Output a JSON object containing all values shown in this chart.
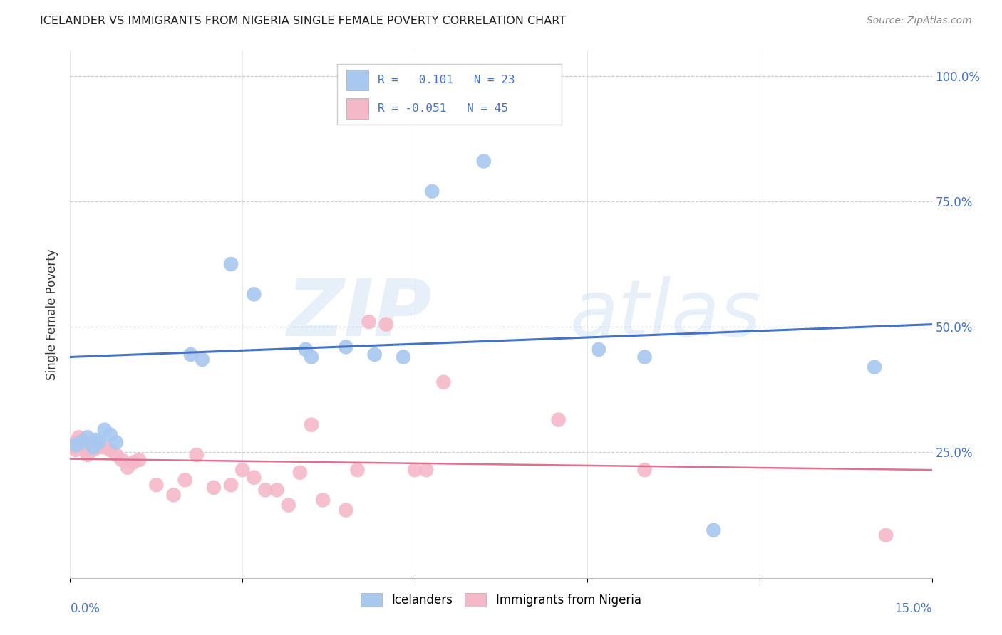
{
  "title": "ICELANDER VS IMMIGRANTS FROM NIGERIA SINGLE FEMALE POVERTY CORRELATION CHART",
  "source": "Source: ZipAtlas.com",
  "ylabel": "Single Female Poverty",
  "icelanders_color": "#a8c8f0",
  "nigeria_color": "#f5b8c8",
  "trendline_blue": "#4472c4",
  "trendline_pink": "#e07090",
  "background_color": "#ffffff",
  "watermark_zip": "ZIP",
  "watermark_atlas": "atlas",
  "xlim": [
    0.0,
    0.15
  ],
  "ylim": [
    0.0,
    1.05
  ],
  "ice_x": [
    0.001,
    0.002,
    0.003,
    0.004,
    0.0045,
    0.005,
    0.006,
    0.007,
    0.008,
    0.021,
    0.023,
    0.028,
    0.032,
    0.041,
    0.042,
    0.048,
    0.053,
    0.058,
    0.063,
    0.072,
    0.092,
    0.1,
    0.112,
    0.14
  ],
  "ice_y": [
    0.265,
    0.27,
    0.28,
    0.26,
    0.275,
    0.27,
    0.295,
    0.285,
    0.27,
    0.445,
    0.435,
    0.625,
    0.565,
    0.455,
    0.44,
    0.46,
    0.445,
    0.44,
    0.77,
    0.83,
    0.455,
    0.44,
    0.095,
    0.42
  ],
  "nig_x": [
    0.0005,
    0.001,
    0.001,
    0.001,
    0.0015,
    0.002,
    0.002,
    0.002,
    0.003,
    0.003,
    0.003,
    0.004,
    0.004,
    0.005,
    0.006,
    0.007,
    0.008,
    0.009,
    0.01,
    0.011,
    0.012,
    0.015,
    0.018,
    0.02,
    0.022,
    0.025,
    0.028,
    0.03,
    0.032,
    0.034,
    0.036,
    0.038,
    0.04,
    0.042,
    0.044,
    0.048,
    0.05,
    0.052,
    0.055,
    0.06,
    0.062,
    0.065,
    0.085,
    0.1,
    0.142
  ],
  "nig_y": [
    0.26,
    0.27,
    0.265,
    0.255,
    0.28,
    0.275,
    0.27,
    0.265,
    0.26,
    0.255,
    0.245,
    0.27,
    0.255,
    0.26,
    0.26,
    0.255,
    0.245,
    0.235,
    0.22,
    0.23,
    0.235,
    0.185,
    0.165,
    0.195,
    0.245,
    0.18,
    0.185,
    0.215,
    0.2,
    0.175,
    0.175,
    0.145,
    0.21,
    0.305,
    0.155,
    0.135,
    0.215,
    0.51,
    0.505,
    0.215,
    0.215,
    0.39,
    0.315,
    0.215,
    0.085
  ],
  "ice_trendline_x": [
    0.0,
    0.15
  ],
  "ice_trendline_y": [
    0.44,
    0.505
  ],
  "nig_trendline_x": [
    0.0,
    0.15
  ],
  "nig_trendline_y": [
    0.237,
    0.215
  ]
}
